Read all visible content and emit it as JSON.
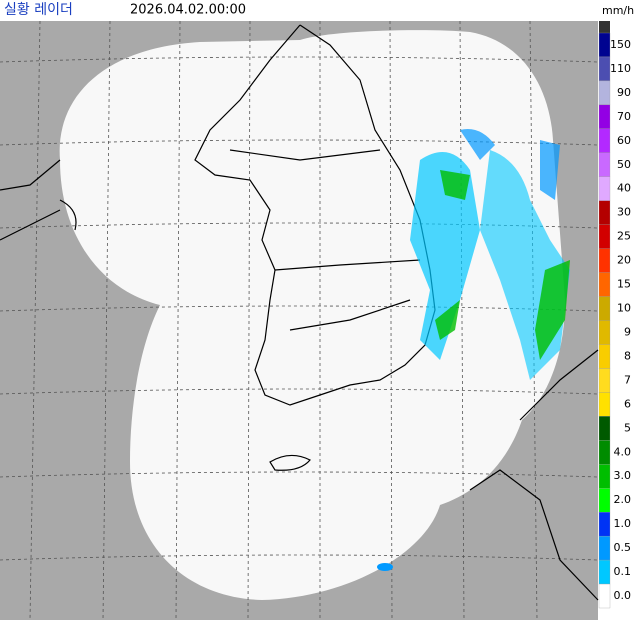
{
  "header": {
    "title": "실황 레이더",
    "timestamp": "2026.04.02.00:00",
    "unit": "mm/h"
  },
  "legend": {
    "items": [
      {
        "label": "150",
        "color": "#000390"
      },
      {
        "label": "110",
        "color": "#4c4eb1"
      },
      {
        "label": "90",
        "color": "#b3b4de"
      },
      {
        "label": "70",
        "color": "#9300e4"
      },
      {
        "label": "60",
        "color": "#b329ff"
      },
      {
        "label": "50",
        "color": "#c969ff"
      },
      {
        "label": "40",
        "color": "#e0a9ff"
      },
      {
        "label": "30",
        "color": "#b40000"
      },
      {
        "label": "25",
        "color": "#d20000"
      },
      {
        "label": "20",
        "color": "#ff3200"
      },
      {
        "label": "15",
        "color": "#ff6600"
      },
      {
        "label": "10",
        "color": "#ccaa00"
      },
      {
        "label": "9",
        "color": "#e0b900"
      },
      {
        "label": "8",
        "color": "#f9cd00"
      },
      {
        "label": "7",
        "color": "#ffdc1f"
      },
      {
        "label": "6",
        "color": "#ffe100"
      },
      {
        "label": "5",
        "color": "#005a00"
      },
      {
        "label": "4.0",
        "color": "#008c00"
      },
      {
        "label": "3.0",
        "color": "#00be00"
      },
      {
        "label": "2.0",
        "color": "#00fe00"
      },
      {
        "label": "1.0",
        "color": "#0033f5"
      },
      {
        "label": "0.5",
        "color": "#0099ff"
      },
      {
        "label": "0.1",
        "color": "#00c8ff"
      },
      {
        "label": "0.0",
        "color": "#ffffff"
      }
    ]
  }
}
